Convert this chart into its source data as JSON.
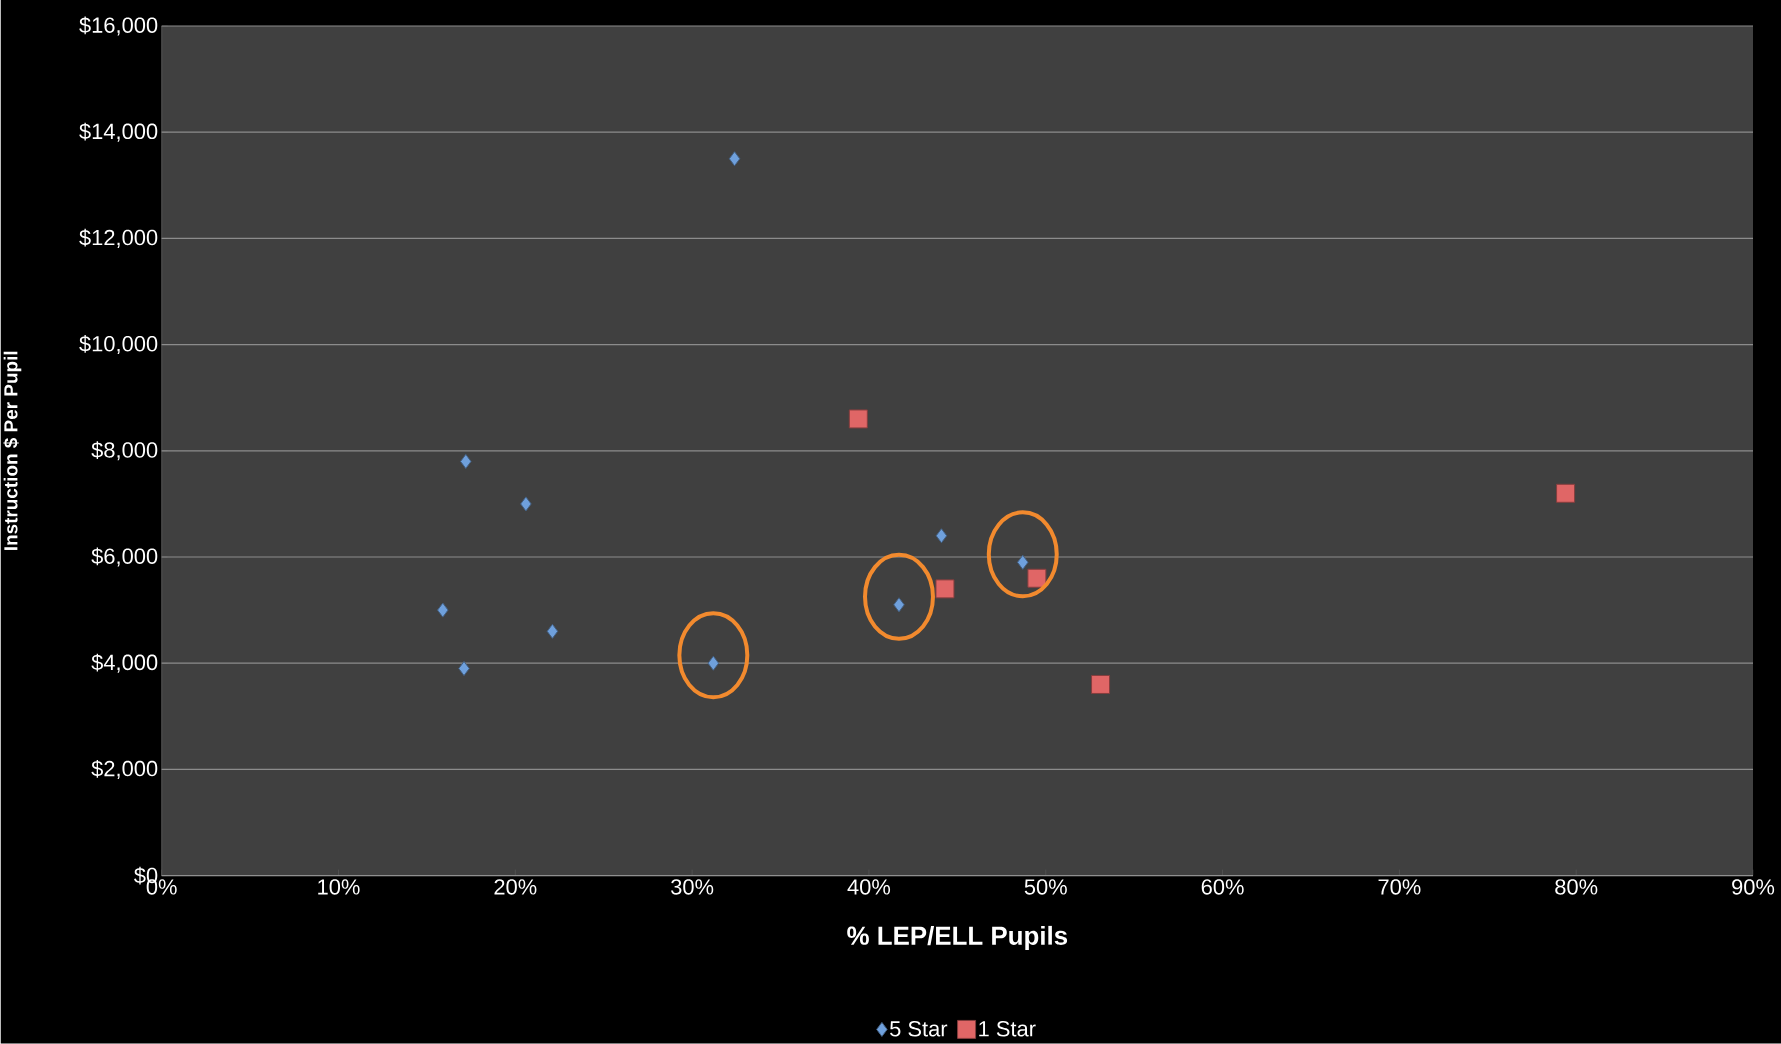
{
  "chart_data": {
    "type": "scatter",
    "xlabel": "% LEP/ELL Pupils",
    "ylabel": "Instruction $ Per Pupil",
    "xlim": [
      0,
      90
    ],
    "xticks": [
      {
        "value": 0,
        "label": "0%"
      },
      {
        "value": 10,
        "label": "10%"
      },
      {
        "value": 20,
        "label": "20%"
      },
      {
        "value": 30,
        "label": "30%"
      },
      {
        "value": 40,
        "label": "40%"
      },
      {
        "value": 50,
        "label": "50%"
      },
      {
        "value": 60,
        "label": "60%"
      },
      {
        "value": 70,
        "label": "70%"
      },
      {
        "value": 80,
        "label": "80%"
      },
      {
        "value": 90,
        "label": "90%"
      }
    ],
    "ylim": [
      0,
      16000
    ],
    "yticks": [
      {
        "value": 0,
        "label": "$0"
      },
      {
        "value": 2000,
        "label": "$2,000"
      },
      {
        "value": 4000,
        "label": "$4,000"
      },
      {
        "value": 6000,
        "label": "$6,000"
      },
      {
        "value": 8000,
        "label": "$8,000"
      },
      {
        "value": 10000,
        "label": "$10,000"
      },
      {
        "value": 12000,
        "label": "$12,000"
      },
      {
        "value": 14000,
        "label": "$14,000"
      },
      {
        "value": 16000,
        "label": "$16,000"
      }
    ],
    "grid": "y",
    "legend": "bottom",
    "series": [
      {
        "name": "5 Star",
        "color": "#6fa0dc",
        "marker": "diamond",
        "x": [
          32.4,
          17.2,
          20.6,
          15.9,
          17.1,
          22.1,
          31.2,
          41.7,
          44.1,
          48.7
        ],
        "values": [
          13500,
          7800,
          7000,
          5000,
          3900,
          4600,
          4000,
          5100,
          6400,
          5900
        ]
      },
      {
        "name": "1 Star",
        "color": "#e06666",
        "marker": "square",
        "x": [
          39.4,
          44.3,
          49.5,
          53.1,
          79.4
        ],
        "values": [
          8600,
          5400,
          5600,
          3600,
          7200
        ]
      }
    ]
  }
}
